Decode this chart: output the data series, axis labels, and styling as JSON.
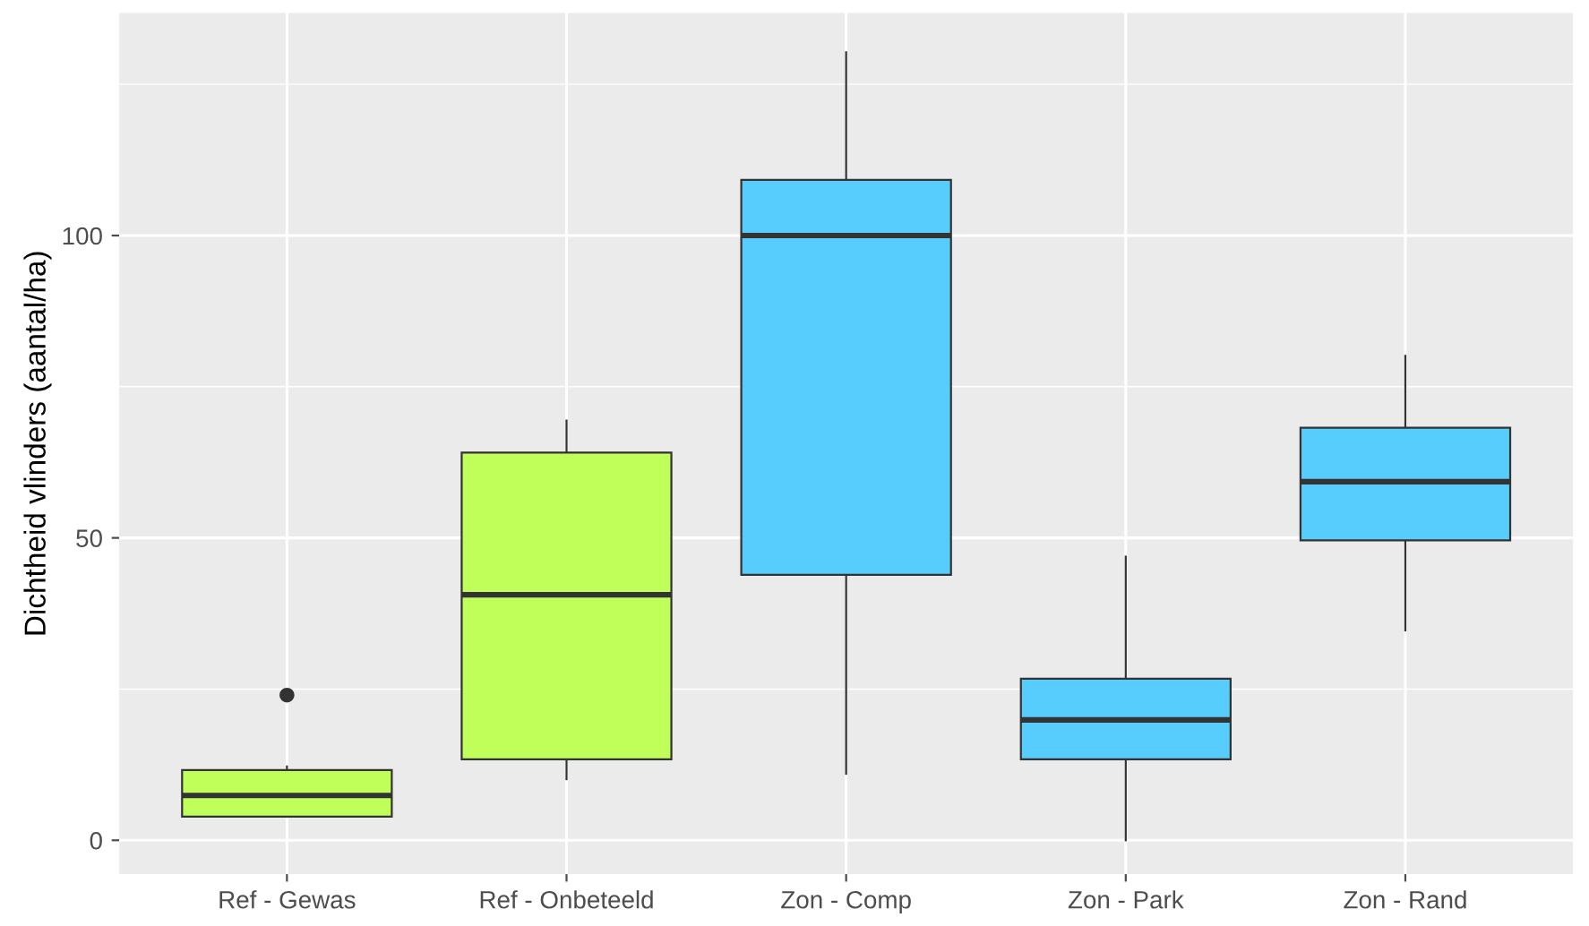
{
  "chart_data": {
    "type": "box",
    "ylabel": "Dichtheid vlinders (aantal/ha)",
    "categories": [
      "Ref - Gewas",
      "Ref - Onbeteeld",
      "Zon - Comp",
      "Zon - Park",
      "Zon - Rand"
    ],
    "boxes": [
      {
        "low": 3.9,
        "q1": 3.9,
        "median": 7.4,
        "q3": 11.6,
        "high": 12.2,
        "outliers": [
          24
        ]
      },
      {
        "low": 10.1,
        "q1": 13.4,
        "median": 40.6,
        "q3": 64.1,
        "high": 69.4
      },
      {
        "low": 11,
        "q1": 43.9,
        "median": 100,
        "q3": 109.2,
        "high": 130.3
      },
      {
        "low": 0,
        "q1": 13.4,
        "median": 19.9,
        "q3": 26.7,
        "high": 46.9
      },
      {
        "low": 34.7,
        "q1": 49.6,
        "median": 59.3,
        "q3": 68.2,
        "high": 80.1
      }
    ],
    "colors": [
      "#c0ff5a",
      "#c0ff5a",
      "#56cdfc",
      "#56cdfc",
      "#56cdfc"
    ],
    "ylim": [
      -5.6,
      136.8
    ],
    "yticks": [
      0,
      50,
      100
    ],
    "grid": true
  }
}
